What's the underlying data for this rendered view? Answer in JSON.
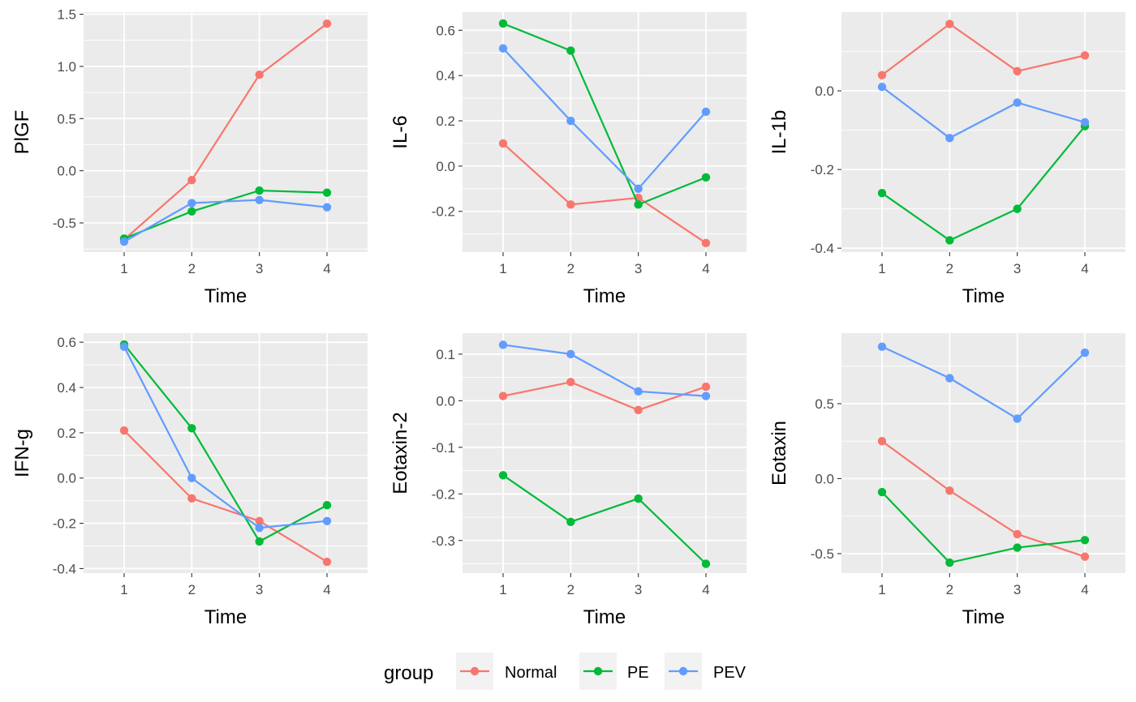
{
  "chart_data": [
    {
      "type": "line",
      "ylabel": "PlGF",
      "xlabel": "Time",
      "categories": [
        "1",
        "2",
        "3",
        "4"
      ],
      "ylim": [
        -0.78,
        1.52
      ],
      "yticks": [
        -0.5,
        0.0,
        0.5,
        1.0,
        1.5
      ],
      "ytick_labels": [
        "-0.5",
        "0.0",
        "0.5",
        "1.0",
        "1.5"
      ],
      "series": [
        {
          "name": "Normal",
          "values": [
            -0.66,
            -0.09,
            0.92,
            1.41
          ]
        },
        {
          "name": "PE",
          "values": [
            -0.65,
            -0.39,
            -0.19,
            -0.21
          ]
        },
        {
          "name": "PEV",
          "values": [
            -0.68,
            -0.31,
            -0.28,
            -0.35
          ]
        }
      ]
    },
    {
      "type": "line",
      "ylabel": "IL-6",
      "xlabel": "Time",
      "categories": [
        "1",
        "2",
        "3",
        "4"
      ],
      "ylim": [
        -0.38,
        0.68
      ],
      "yticks": [
        -0.2,
        0.0,
        0.2,
        0.4,
        0.6
      ],
      "ytick_labels": [
        "-0.2",
        "0.0",
        "0.2",
        "0.4",
        "0.6"
      ],
      "series": [
        {
          "name": "Normal",
          "values": [
            0.1,
            -0.17,
            -0.14,
            -0.34
          ]
        },
        {
          "name": "PE",
          "values": [
            0.63,
            0.51,
            -0.17,
            -0.05
          ]
        },
        {
          "name": "PEV",
          "values": [
            0.52,
            0.2,
            -0.1,
            0.24
          ]
        }
      ]
    },
    {
      "type": "line",
      "ylabel": "IL-1b",
      "xlabel": "Time",
      "categories": [
        "1",
        "2",
        "3",
        "4"
      ],
      "ylim": [
        -0.41,
        0.2
      ],
      "yticks": [
        -0.4,
        -0.2,
        0.0
      ],
      "ytick_labels": [
        "-0.4",
        "-0.2",
        "0.0"
      ],
      "series": [
        {
          "name": "Normal",
          "values": [
            0.04,
            0.17,
            0.05,
            0.09
          ]
        },
        {
          "name": "PE",
          "values": [
            -0.26,
            -0.38,
            -0.3,
            -0.09
          ]
        },
        {
          "name": "PEV",
          "values": [
            0.01,
            -0.12,
            -0.03,
            -0.08
          ]
        }
      ]
    },
    {
      "type": "line",
      "ylabel": "IFN-g",
      "xlabel": "Time",
      "categories": [
        "1",
        "2",
        "3",
        "4"
      ],
      "ylim": [
        -0.42,
        0.64
      ],
      "yticks": [
        -0.4,
        -0.2,
        0.0,
        0.2,
        0.4,
        0.6
      ],
      "ytick_labels": [
        "-0.4",
        "-0.2",
        "0.0",
        "0.2",
        "0.4",
        "0.6"
      ],
      "series": [
        {
          "name": "Normal",
          "values": [
            0.21,
            -0.09,
            -0.19,
            -0.37
          ]
        },
        {
          "name": "PE",
          "values": [
            0.59,
            0.22,
            -0.28,
            -0.12
          ]
        },
        {
          "name": "PEV",
          "values": [
            0.58,
            0.0,
            -0.22,
            -0.19
          ]
        }
      ]
    },
    {
      "type": "line",
      "ylabel": "Eotaxin-2",
      "xlabel": "Time",
      "categories": [
        "1",
        "2",
        "3",
        "4"
      ],
      "ylim": [
        -0.37,
        0.145
      ],
      "yticks": [
        -0.3,
        -0.2,
        -0.1,
        0.0,
        0.1
      ],
      "ytick_labels": [
        "-0.3",
        "-0.2",
        "-0.1",
        "0.0",
        "0.1"
      ],
      "series": [
        {
          "name": "Normal",
          "values": [
            0.01,
            0.04,
            -0.02,
            0.03
          ]
        },
        {
          "name": "PE",
          "values": [
            -0.16,
            -0.26,
            -0.21,
            -0.35
          ]
        },
        {
          "name": "PEV",
          "values": [
            0.12,
            0.1,
            0.02,
            0.01
          ]
        }
      ]
    },
    {
      "type": "line",
      "ylabel": "Eotaxin",
      "xlabel": "Time",
      "categories": [
        "1",
        "2",
        "3",
        "4"
      ],
      "ylim": [
        -0.63,
        0.97
      ],
      "yticks": [
        -0.5,
        0.0,
        0.5
      ],
      "ytick_labels": [
        "-0.5",
        "0.0",
        "0.5"
      ],
      "series": [
        {
          "name": "Normal",
          "values": [
            0.25,
            -0.08,
            -0.37,
            -0.52
          ]
        },
        {
          "name": "PE",
          "values": [
            -0.09,
            -0.56,
            -0.46,
            -0.41
          ]
        },
        {
          "name": "PEV",
          "values": [
            0.88,
            0.67,
            0.4,
            0.84
          ]
        }
      ]
    }
  ],
  "legend": {
    "title": "group",
    "position": "bottom",
    "items": [
      {
        "label": "Normal",
        "color": "#F8766D"
      },
      {
        "label": "PE",
        "color": "#00BA38"
      },
      {
        "label": "PEV",
        "color": "#619CFF"
      }
    ]
  },
  "colors": {
    "Normal": "#F8766D",
    "PE": "#00BA38",
    "PEV": "#619CFF",
    "panel_background": "#EBEBEB",
    "grid": "#FFFFFF"
  }
}
